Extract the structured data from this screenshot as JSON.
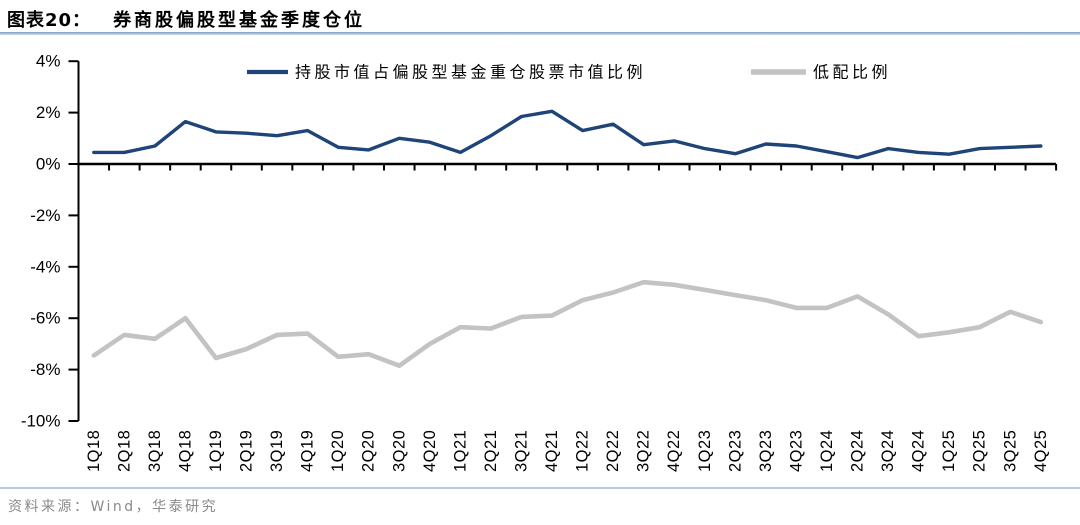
{
  "header": {
    "figure_label": "图表20：",
    "title": "券商股偏股型基金季度仓位",
    "rule_color": "#7d9cbc"
  },
  "chart_data": {
    "type": "line",
    "title": "券商股偏股型基金季度仓位",
    "categories": [
      "1Q18",
      "2Q18",
      "3Q18",
      "4Q18",
      "1Q19",
      "2Q19",
      "3Q19",
      "4Q19",
      "1Q20",
      "2Q20",
      "3Q20",
      "4Q20",
      "1Q21",
      "2Q21",
      "3Q21",
      "4Q21",
      "1Q22",
      "2Q22",
      "3Q22",
      "4Q22",
      "1Q23",
      "2Q23",
      "3Q23",
      "4Q23",
      "1Q24",
      "2Q24",
      "3Q24",
      "4Q24",
      "1Q25",
      "2Q25",
      "3Q25",
      "4Q25"
    ],
    "series": [
      {
        "name": "持股市值占偏股型基金重仓股票市值比例",
        "color": "#1F4478",
        "stroke_width": 3.4,
        "values": [
          0.45,
          0.45,
          0.7,
          1.65,
          1.25,
          1.2,
          1.1,
          1.3,
          0.65,
          0.55,
          1.0,
          0.85,
          0.45,
          1.1,
          1.85,
          2.05,
          1.3,
          1.55,
          0.75,
          0.9,
          0.6,
          0.4,
          0.78,
          0.7,
          0.48,
          0.25,
          0.6,
          0.45,
          0.38,
          0.6,
          0.65,
          0.7
        ]
      },
      {
        "name": "低配比例",
        "color": "#C3C3C3",
        "stroke_width": 4.6,
        "values": [
          -7.45,
          -6.65,
          -6.8,
          -6.0,
          -7.55,
          -7.2,
          -6.65,
          -6.6,
          -7.5,
          -7.4,
          -7.85,
          -7.0,
          -6.35,
          -6.4,
          -5.95,
          -5.9,
          -5.3,
          -5.0,
          -4.6,
          -4.7,
          -4.9,
          -5.1,
          -5.3,
          -5.6,
          -5.6,
          -5.15,
          -5.85,
          -6.7,
          -6.55,
          -6.35,
          -5.75,
          -6.15
        ]
      }
    ],
    "ylim": [
      -10,
      4
    ],
    "ytick_step": 2,
    "ytick_labels": [
      "4%",
      "2%",
      "0%",
      "-2%",
      "-4%",
      "-6%",
      "-8%",
      "-10%"
    ],
    "xlabel": "",
    "ylabel": "",
    "grid": false,
    "legend_position": "top"
  },
  "footer": {
    "source": "资料来源：Wind，华泰研究"
  }
}
